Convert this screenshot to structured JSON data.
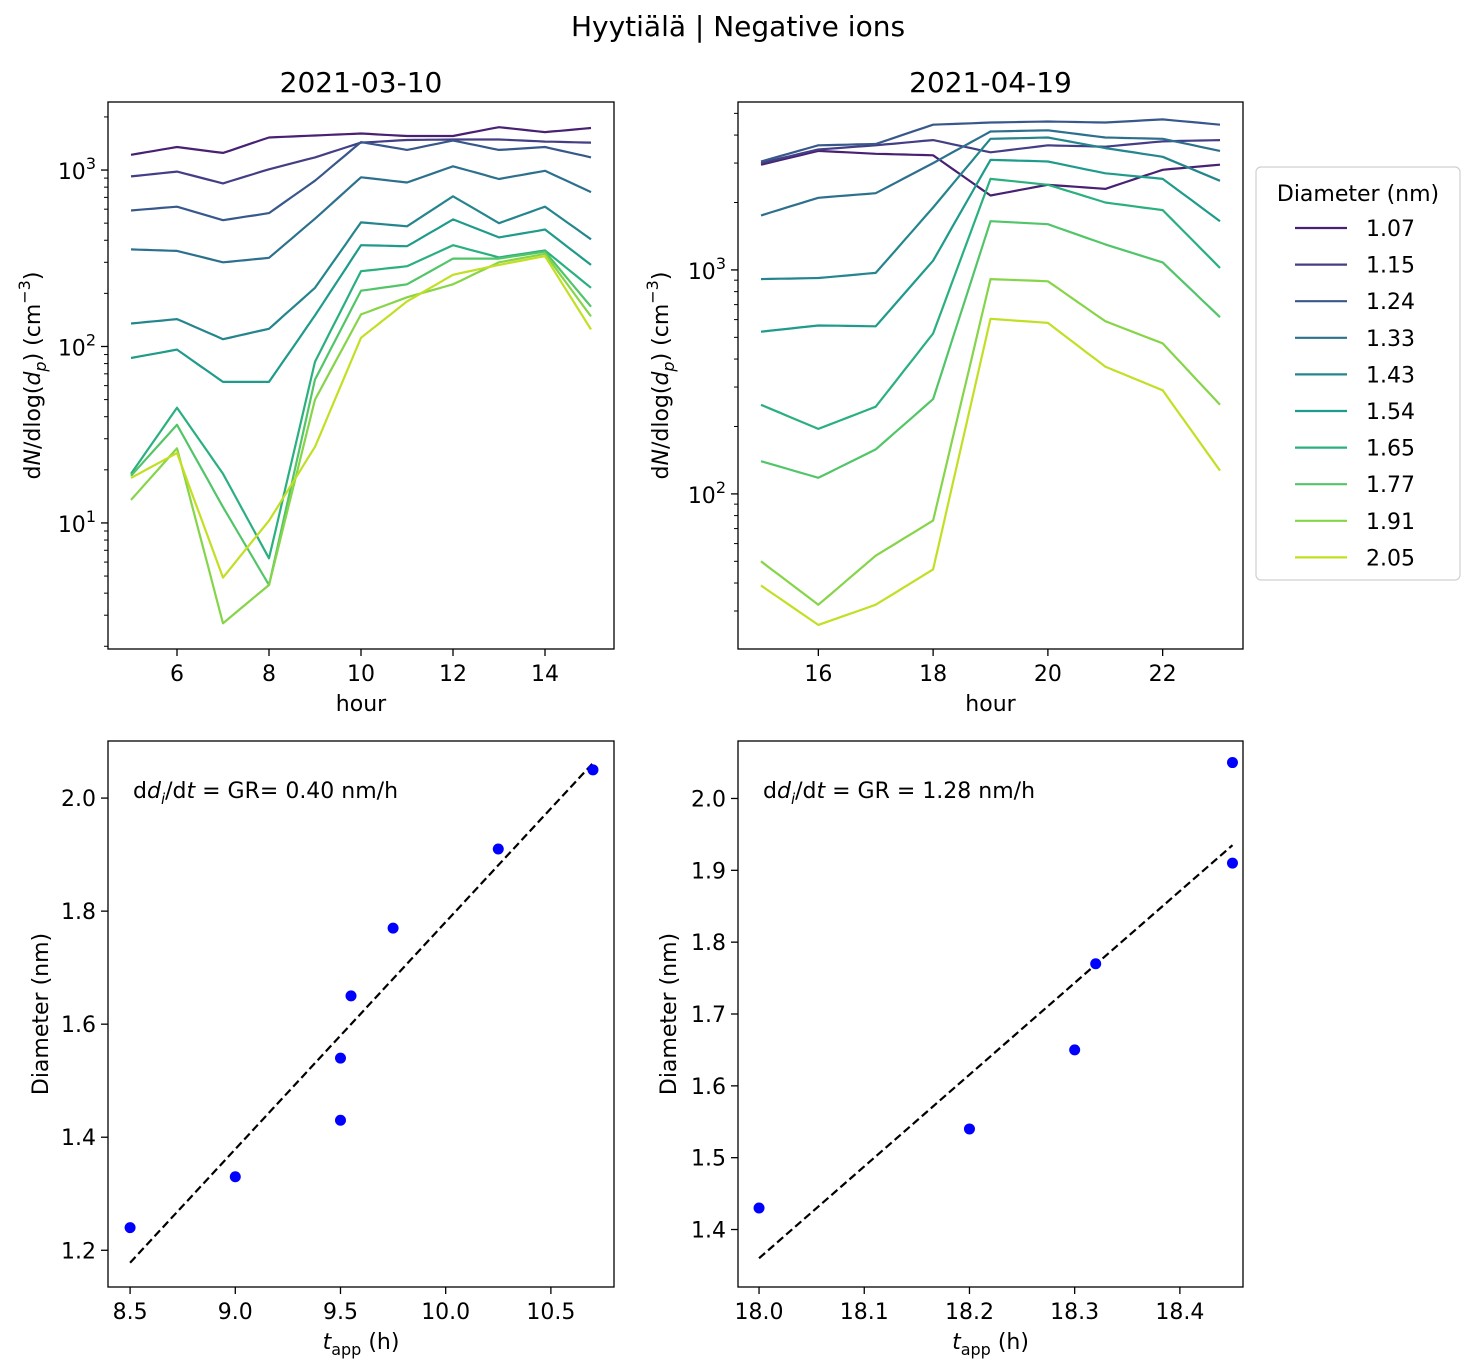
{
  "figure": {
    "suptitle": "Hyytiälä | Negative ions"
  },
  "chart_data": [
    {
      "id": "spectra-a",
      "type": "line",
      "title": "2021-03-10",
      "xlabel": "hour",
      "ylabel": "dN/dlog(d_p) (cm^-3)",
      "yscale": "log",
      "xlim": [
        4.5,
        15.5
      ],
      "ylim": [
        1.93,
        2430
      ],
      "xticks": [
        6,
        8,
        10,
        12,
        14
      ],
      "xtick_labels": [
        "6",
        "8",
        "10",
        "12",
        "14"
      ],
      "yticks": [
        10,
        100,
        1000
      ],
      "ytick_labels": [
        {
          "base": "10",
          "exp": "1"
        },
        {
          "base": "10",
          "exp": "2"
        },
        {
          "base": "10",
          "exp": "3"
        }
      ],
      "x": [
        5,
        6,
        7,
        8,
        9,
        10,
        11,
        12,
        13,
        14,
        15
      ],
      "series": [
        {
          "name": "1.07",
          "color": "#482173",
          "values": [
            1220,
            1350,
            1250,
            1530,
            1570,
            1610,
            1560,
            1560,
            1750,
            1640,
            1730
          ]
        },
        {
          "name": "1.15",
          "color": "#433e85",
          "values": [
            920,
            980,
            840,
            1010,
            1180,
            1430,
            1480,
            1490,
            1490,
            1450,
            1430
          ]
        },
        {
          "name": "1.24",
          "color": "#38588c",
          "values": [
            590,
            620,
            520,
            570,
            870,
            1440,
            1300,
            1470,
            1300,
            1350,
            1180
          ]
        },
        {
          "name": "1.33",
          "color": "#2d708e",
          "values": [
            355,
            348,
            300,
            318,
            530,
            910,
            850,
            1050,
            890,
            990,
            750
          ]
        },
        {
          "name": "1.43",
          "color": "#25858e",
          "values": [
            135,
            143,
            110,
            126,
            215,
            505,
            480,
            710,
            500,
            620,
            405
          ]
        },
        {
          "name": "1.54",
          "color": "#1e9b8a",
          "values": [
            86,
            96,
            63,
            63,
            150,
            375,
            370,
            525,
            415,
            460,
            290
          ]
        },
        {
          "name": "1.65",
          "color": "#2ab07f",
          "values": [
            19,
            45,
            19,
            6.3,
            82,
            267,
            285,
            375,
            320,
            350,
            215
          ]
        },
        {
          "name": "1.77",
          "color": "#52c569",
          "values": [
            18.5,
            36,
            12.3,
            4.45,
            65,
            207,
            225,
            315,
            315,
            345,
            168
          ]
        },
        {
          "name": "1.91",
          "color": "#86d549",
          "values": [
            13.5,
            26.5,
            2.7,
            4.45,
            50,
            152,
            190,
            225,
            300,
            335,
            148
          ]
        },
        {
          "name": "2.05",
          "color": "#c2df23",
          "values": [
            18.0,
            24.9,
            4.9,
            10.3,
            27,
            112,
            180,
            255,
            290,
            325,
            125
          ]
        }
      ]
    },
    {
      "id": "spectra-b",
      "type": "line",
      "title": "2021-04-19",
      "xlabel": "hour",
      "ylabel": "dN/dlog(d_p) (cm^-3)",
      "yscale": "log",
      "xlim": [
        14.6,
        23.4
      ],
      "ylim": [
        20.3,
        5620
      ],
      "xticks": [
        16,
        18,
        20,
        22
      ],
      "xtick_labels": [
        "16",
        "18",
        "20",
        "22"
      ],
      "yticks": [
        100,
        1000
      ],
      "ytick_labels": [
        {
          "base": "10",
          "exp": "2"
        },
        {
          "base": "10",
          "exp": "3"
        }
      ],
      "x": [
        15,
        16,
        17,
        18,
        19,
        20,
        21,
        22,
        23
      ],
      "series": [
        {
          "name": "1.07",
          "color": "#482173",
          "values": [
            2950,
            3400,
            3300,
            3250,
            2150,
            2400,
            2300,
            2800,
            2950
          ]
        },
        {
          "name": "1.15",
          "color": "#433e85",
          "values": [
            3000,
            3450,
            3600,
            3800,
            3350,
            3600,
            3550,
            3750,
            3800
          ]
        },
        {
          "name": "1.24",
          "color": "#38588c",
          "values": [
            3050,
            3600,
            3650,
            4450,
            4550,
            4600,
            4550,
            4700,
            4450
          ]
        },
        {
          "name": "1.33",
          "color": "#2d708e",
          "values": [
            1750,
            2100,
            2200,
            3000,
            4150,
            4200,
            3900,
            3850,
            3400
          ]
        },
        {
          "name": "1.43",
          "color": "#25858e",
          "values": [
            910,
            920,
            970,
            1900,
            3850,
            3900,
            3500,
            3200,
            2500
          ]
        },
        {
          "name": "1.54",
          "color": "#1e9b8a",
          "values": [
            530,
            565,
            560,
            1100,
            3100,
            3050,
            2700,
            2550,
            1650
          ]
        },
        {
          "name": "1.65",
          "color": "#2ab07f",
          "values": [
            250,
            195,
            245,
            520,
            2550,
            2400,
            2000,
            1850,
            1020
          ]
        },
        {
          "name": "1.77",
          "color": "#52c569",
          "values": [
            140,
            118,
            158,
            265,
            1650,
            1600,
            1300,
            1080,
            615
          ]
        },
        {
          "name": "1.91",
          "color": "#86d549",
          "values": [
            50,
            32,
            53,
            76,
            910,
            890,
            590,
            470,
            250
          ]
        },
        {
          "name": "2.05",
          "color": "#c2df23",
          "values": [
            39,
            26,
            32,
            46,
            605,
            580,
            370,
            290,
            127
          ]
        }
      ]
    },
    {
      "id": "growth-a",
      "type": "scatter",
      "xlabel": "t_app (h)",
      "ylabel": "Diameter (nm)",
      "xlim": [
        8.395,
        10.8
      ],
      "ylim": [
        1.135,
        2.101
      ],
      "xticks": [
        8.5,
        9.0,
        9.5,
        10.0,
        10.5
      ],
      "xtick_labels": [
        "8.5",
        "9.0",
        "9.5",
        "10.0",
        "10.5"
      ],
      "yticks": [
        1.2,
        1.4,
        1.6,
        1.8,
        2.0
      ],
      "ytick_labels": [
        "1.2",
        "1.4",
        "1.6",
        "1.8",
        "2.0"
      ],
      "points": [
        {
          "x": 8.5,
          "y": 1.24
        },
        {
          "x": 9.0,
          "y": 1.33
        },
        {
          "x": 9.5,
          "y": 1.43
        },
        {
          "x": 9.5,
          "y": 1.54
        },
        {
          "x": 9.55,
          "y": 1.65
        },
        {
          "x": 9.75,
          "y": 1.77
        },
        {
          "x": 10.25,
          "y": 1.91
        },
        {
          "x": 10.7,
          "y": 2.05
        }
      ],
      "point_color": "#0000ff",
      "fit": {
        "x": [
          8.5,
          10.7
        ],
        "y": [
          1.178,
          2.062
        ],
        "style": "dashed",
        "color": "#000000"
      },
      "annotation": {
        "prefix": "d",
        "var": "d",
        "sub": "i",
        "mid": "/d",
        "tvar": "t",
        "rest": " = GR= 0.40 nm/h"
      }
    },
    {
      "id": "growth-b",
      "type": "scatter",
      "xlabel": "t_app (h)",
      "ylabel": "Diameter (nm)",
      "xlim": [
        17.98,
        18.46
      ],
      "ylim": [
        1.32,
        2.08
      ],
      "xticks": [
        18.0,
        18.1,
        18.2,
        18.3,
        18.4
      ],
      "xtick_labels": [
        "18.0",
        "18.1",
        "18.2",
        "18.3",
        "18.4"
      ],
      "yticks": [
        1.4,
        1.5,
        1.6,
        1.7,
        1.8,
        1.9,
        2.0
      ],
      "ytick_labels": [
        "1.4",
        "1.5",
        "1.6",
        "1.7",
        "1.8",
        "1.9",
        "2.0"
      ],
      "points": [
        {
          "x": 18.0,
          "y": 1.43
        },
        {
          "x": 18.2,
          "y": 1.54
        },
        {
          "x": 18.3,
          "y": 1.65
        },
        {
          "x": 18.32,
          "y": 1.77
        },
        {
          "x": 18.45,
          "y": 1.91
        },
        {
          "x": 18.45,
          "y": 2.05
        }
      ],
      "point_color": "#0000ff",
      "fit": {
        "x": [
          18.0,
          18.45
        ],
        "y": [
          1.36,
          1.935
        ],
        "style": "dashed",
        "color": "#000000"
      },
      "annotation": {
        "prefix": "d",
        "var": "d",
        "sub": "i",
        "mid": "/d",
        "tvar": "t",
        "rest": " = GR = 1.28 nm/h"
      }
    }
  ],
  "legend": {
    "title": "Diameter (nm)",
    "placement": "right of top-right panel",
    "entries": [
      {
        "label": "1.07",
        "color": "#482173"
      },
      {
        "label": "1.15",
        "color": "#433e85"
      },
      {
        "label": "1.24",
        "color": "#38588c"
      },
      {
        "label": "1.33",
        "color": "#2d708e"
      },
      {
        "label": "1.43",
        "color": "#25858e"
      },
      {
        "label": "1.54",
        "color": "#1e9b8a"
      },
      {
        "label": "1.65",
        "color": "#2ab07f"
      },
      {
        "label": "1.77",
        "color": "#52c569"
      },
      {
        "label": "1.91",
        "color": "#86d549"
      },
      {
        "label": "2.05",
        "color": "#c2df23"
      }
    ]
  }
}
